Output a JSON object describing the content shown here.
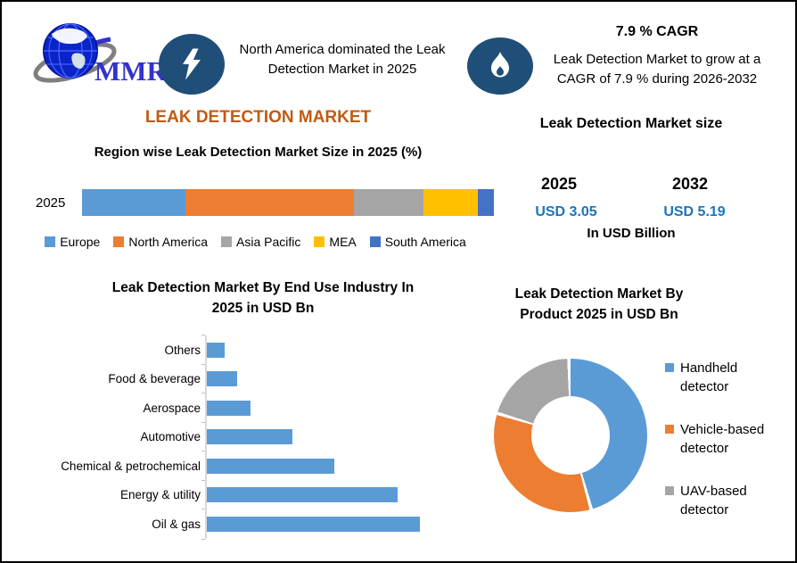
{
  "header": {
    "logo_text": "MMR",
    "headline": "North America dominated the Leak Detection Market in 2025",
    "cagr_title": "7.9 % CAGR",
    "cagr_text": "Leak Detection Market to grow at a CAGR of 7.9 % during 2026-2032"
  },
  "region_section": {
    "title": "LEAK DETECTION MARKET",
    "subtitle": "Region wise Leak Detection Market Size in 2025 (%)",
    "row_label": "2025"
  },
  "market_size": {
    "title": "Leak Detection Market size",
    "year_start": "2025",
    "year_end": "2032",
    "value_start": "USD 3.05",
    "value_end": "USD 5.19",
    "unit": "In USD Billion"
  },
  "end_use_section": {
    "title_line1": "Leak Detection Market By End Use Industry In",
    "title_line2": "2025 in USD Bn"
  },
  "product_section": {
    "title_line1": "Leak Detection Market By",
    "title_line2": "Product 2025 in USD Bn"
  },
  "colors": {
    "accent_navy": "#1F4E79",
    "title_orange": "#C25A12",
    "value_blue": "#1B75BC",
    "bar_blue": "#5B9BD5"
  },
  "chart_data": [
    {
      "id": "region_share",
      "type": "bar",
      "variant": "stacked-horizontal",
      "title": "Region wise Leak Detection Market Size in 2025 (%)",
      "categories": [
        "2025"
      ],
      "series": [
        {
          "name": "Europe",
          "values": [
            25
          ],
          "color": "#5B9BD5"
        },
        {
          "name": "North America",
          "values": [
            41
          ],
          "color": "#ED7D31"
        },
        {
          "name": "Asia Pacific",
          "values": [
            17
          ],
          "color": "#A5A5A5"
        },
        {
          "name": "MEA",
          "values": [
            13
          ],
          "color": "#FFC000"
        },
        {
          "name": "South America",
          "values": [
            4
          ],
          "color": "#4472C4"
        }
      ],
      "unit": "%",
      "xlim": [
        0,
        100
      ],
      "legend_position": "bottom",
      "grid": false
    },
    {
      "id": "end_use",
      "type": "bar",
      "variant": "horizontal",
      "title": "Leak Detection Market By End Use Industry In 2025 in USD Bn",
      "categories": [
        "Others",
        "Food & beverage",
        "Aerospace",
        "Automotive",
        "Chemical & petrochemical",
        "Energy & utility",
        "Oil & gas"
      ],
      "values": [
        0.08,
        0.14,
        0.2,
        0.39,
        0.58,
        0.87,
        0.97
      ],
      "color": "#5B9BD5",
      "unit": "USD Bn",
      "xlim": [
        0,
        1.0
      ],
      "grid": false
    },
    {
      "id": "product_share",
      "type": "pie",
      "variant": "donut",
      "title": "Leak Detection Market By Product 2025 in USD Bn",
      "labels": [
        "Handheld detector",
        "Vehicle-based detector",
        "UAV-based detector"
      ],
      "values_pct": [
        46,
        34,
        20
      ],
      "colors": [
        "#5B9BD5",
        "#ED7D31",
        "#A5A5A5"
      ],
      "legend_position": "right"
    }
  ]
}
